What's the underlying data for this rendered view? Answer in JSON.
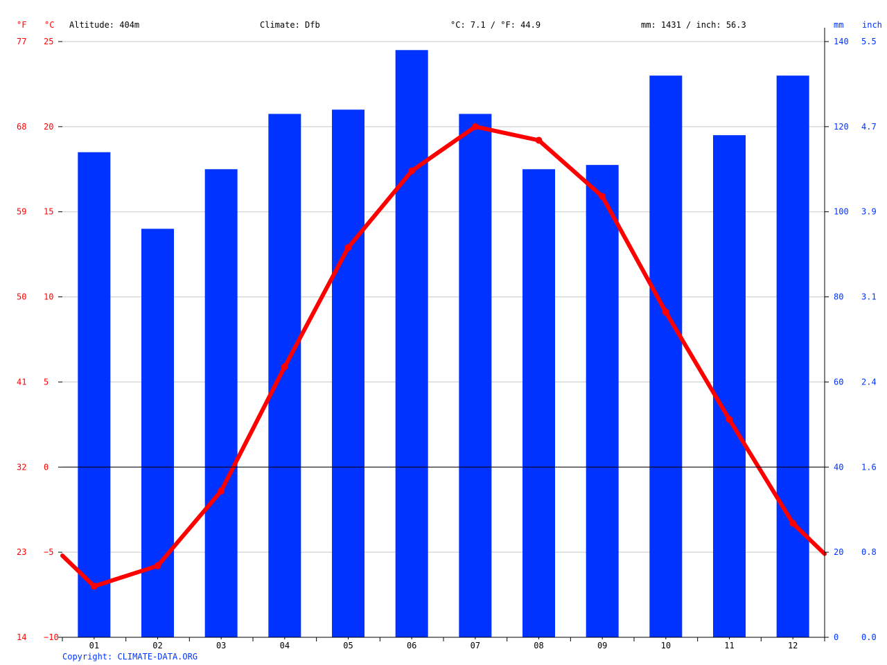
{
  "header": {
    "altitude": "Altitude: 404m",
    "climate": "Climate: Dfb",
    "temp_avg": "°C: 7.1 / °F: 44.9",
    "precip_total": "mm: 1431 / inch: 56.3"
  },
  "axis_units": {
    "f": "°F",
    "c": "°C",
    "mm": "mm",
    "inch": "inch"
  },
  "copyright": "Copyright: CLIMATE-DATA.ORG",
  "colors": {
    "precip": "#0033ff",
    "temp": "#ff0000",
    "axis_temp": "#ff0000",
    "axis_precip": "#0033ff",
    "grid": "#c8c8c8"
  },
  "chart_data": {
    "type": "bar",
    "categories": [
      "01",
      "02",
      "03",
      "04",
      "05",
      "06",
      "07",
      "08",
      "09",
      "10",
      "11",
      "12"
    ],
    "series": [
      {
        "type": "bar",
        "axis": "right",
        "values": [
          114,
          96,
          110,
          123,
          124,
          138,
          123,
          110,
          111,
          132,
          118,
          132
        ]
      },
      {
        "type": "line",
        "axis": "left",
        "values": [
          -7.0,
          -5.8,
          -1.4,
          5.9,
          12.9,
          17.4,
          20.0,
          19.2,
          15.9,
          9.1,
          2.8,
          -3.3
        ]
      }
    ],
    "line_edges": {
      "start": -5.2,
      "end": -5.1
    },
    "y_left": {
      "ylim": [
        -10,
        25
      ],
      "ticks_c": [
        "25",
        "20",
        "15",
        "10",
        "5",
        "0",
        "−5",
        "−10"
      ],
      "ticks_f": [
        "77",
        "68",
        "59",
        "50",
        "41",
        "32",
        "23",
        "14"
      ]
    },
    "y_right": {
      "ylim": [
        0,
        140
      ],
      "ticks_mm": [
        "140",
        "120",
        "100",
        "80",
        "60",
        "40",
        "20",
        "0"
      ],
      "ticks_inch": [
        "5.5",
        "4.7",
        "3.9",
        "3.1",
        "2.4",
        "1.6",
        "0.8",
        "0.0"
      ]
    },
    "grid": true,
    "legend": "none"
  }
}
